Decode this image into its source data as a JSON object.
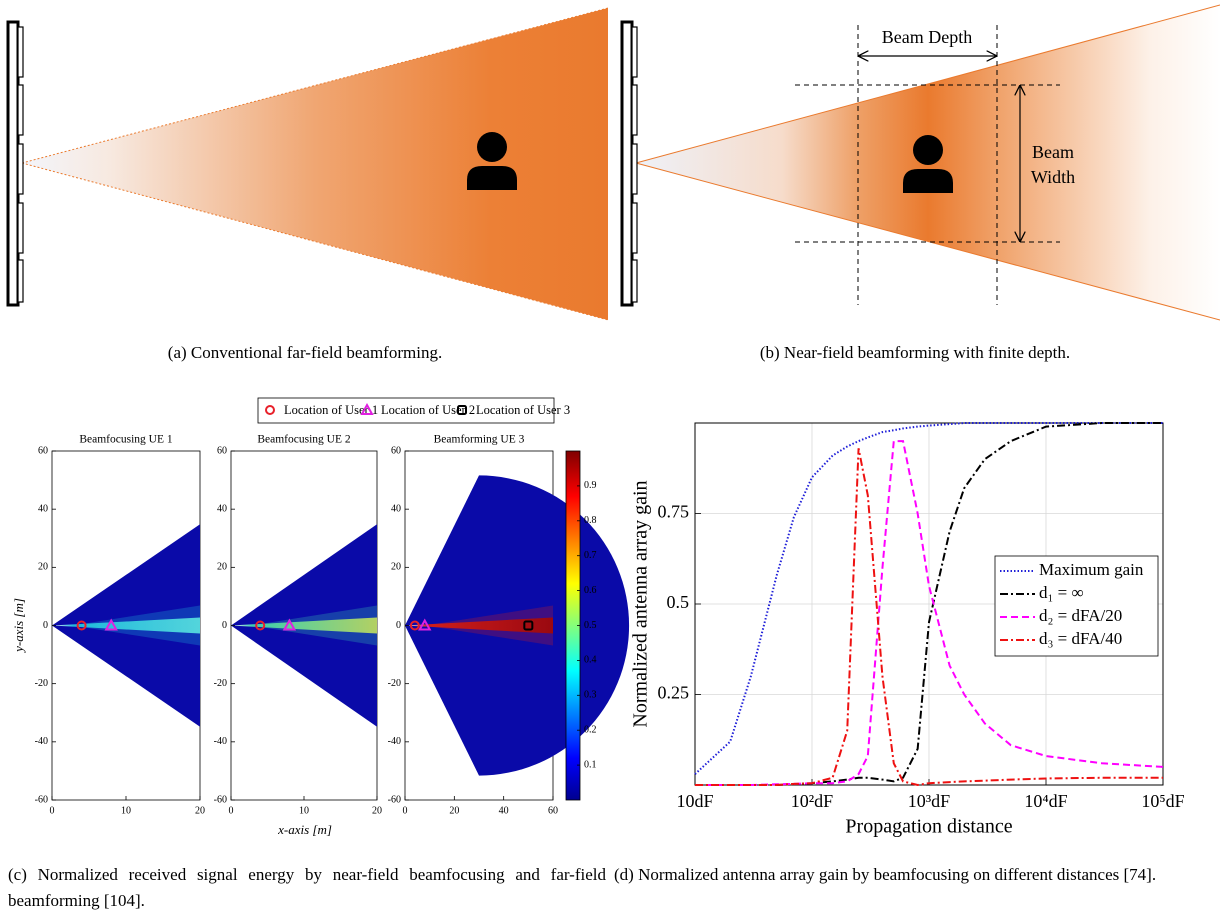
{
  "panel_a": {
    "caption": "(a) Conventional far-field beamforming."
  },
  "panel_b": {
    "depth_label": "Beam Depth",
    "width_label": [
      "Beam",
      "Width"
    ],
    "caption": "(b) Near-field beamforming with finite depth."
  },
  "chart_data": [
    {
      "type": "heatmap",
      "caption": "(c) Normalized received signal energy by near-field beamfocusing and far-field beamforming [104].",
      "xlabel": "x-axis [m]",
      "ylabel": "y-axis [m]",
      "series": [
        {
          "name": "Location of User 1",
          "color": "#e8202a",
          "marker": "circle"
        },
        {
          "name": "Location of User 2",
          "color": "#e020e0",
          "marker": "triangle"
        },
        {
          "name": "Location of User 3",
          "color": "#000000",
          "marker": "square"
        }
      ],
      "subplots": [
        {
          "title": "Beamfocusing UE 1",
          "xlim": [
            0,
            20
          ],
          "xticks": [
            0,
            10,
            20
          ],
          "ylim": [
            -60,
            60
          ],
          "yticks": [
            -60,
            -40,
            -20,
            0,
            20,
            40,
            60
          ],
          "users": {
            "x": [
              4,
              8,
              null
            ],
            "y": [
              0,
              0,
              null
            ]
          }
        },
        {
          "title": "Beamfocusing UE 2",
          "xlim": [
            0,
            20
          ],
          "xticks": [
            0,
            10,
            20
          ],
          "ylim": [
            -60,
            60
          ],
          "yticks": [
            -60,
            -40,
            -20,
            0,
            20,
            40,
            60
          ],
          "users": {
            "x": [
              4,
              8,
              null
            ],
            "y": [
              0,
              0,
              null
            ]
          }
        },
        {
          "title": "Beamforming UE 3",
          "xlim": [
            0,
            60
          ],
          "xticks": [
            0,
            20,
            40,
            60
          ],
          "ylim": [
            -60,
            60
          ],
          "yticks": [
            -60,
            -40,
            -20,
            0,
            20,
            40,
            60
          ],
          "users": {
            "x": [
              4,
              8,
              50
            ],
            "y": [
              0,
              0,
              0
            ]
          }
        }
      ],
      "colorbar": {
        "lim": [
          0,
          1
        ],
        "ticks": [
          0.1,
          0.2,
          0.3,
          0.4,
          0.5,
          0.6,
          0.7,
          0.8,
          0.9
        ]
      }
    },
    {
      "type": "line",
      "caption": "(d) Normalized antenna array gain by beamfocusing on different distances [74].",
      "xlabel": "Propagation distance",
      "ylabel": "Normalized antenna array gain",
      "log_x": true,
      "grid": true,
      "legend": "right",
      "xlim": [
        10,
        100000
      ],
      "xticks": [
        {
          "value": 10,
          "label": "10dF"
        },
        {
          "value": 100,
          "label": "10²dF"
        },
        {
          "value": 1000,
          "label": "10³dF"
        },
        {
          "value": 10000,
          "label": "10⁴dF"
        },
        {
          "value": 100000,
          "label": "10⁵dF"
        }
      ],
      "ylim": [
        0,
        1
      ],
      "yticks": [
        0.25,
        0.5,
        0.75
      ],
      "x": [
        10,
        20,
        30,
        50,
        70,
        100,
        150,
        200,
        250,
        300,
        400,
        500,
        600,
        800,
        1000,
        1500,
        2000,
        3000,
        5000,
        10000,
        30000,
        100000
      ],
      "series": [
        {
          "name": "Maximum gain",
          "color": "#1f1fd8",
          "dash": "dotted",
          "values": [
            0.03,
            0.12,
            0.3,
            0.58,
            0.74,
            0.85,
            0.91,
            0.935,
            0.95,
            0.96,
            0.975,
            0.98,
            0.985,
            0.99,
            0.993,
            0.997,
            1,
            1,
            1,
            1,
            1,
            1
          ]
        },
        {
          "name": "d₁ = ∞",
          "color": "#000000",
          "dash": "dashdot",
          "values": [
            0,
            0,
            0,
            0,
            0.002,
            0.005,
            0.01,
            0.015,
            0.02,
            0.02,
            0.015,
            0.01,
            0.02,
            0.1,
            0.45,
            0.7,
            0.82,
            0.9,
            0.95,
            0.99,
            1,
            1
          ]
        },
        {
          "name": "d₂ = dFA/20",
          "color": "#ff00ff",
          "dash": "dashed",
          "values": [
            0,
            0,
            0,
            0.002,
            0.003,
            0.005,
            0.005,
            0.01,
            0.03,
            0.08,
            0.6,
            0.95,
            0.95,
            0.75,
            0.55,
            0.33,
            0.25,
            0.17,
            0.11,
            0.08,
            0.06,
            0.05
          ]
        },
        {
          "name": "d₃ = dFA/40",
          "color": "#ee1111",
          "dash": "dashdot",
          "values": [
            0,
            0,
            0,
            0,
            0.003,
            0.005,
            0.02,
            0.15,
            0.93,
            0.8,
            0.3,
            0.06,
            0.01,
            0,
            0.005,
            0.008,
            0.01,
            0.012,
            0.015,
            0.018,
            0.02,
            0.02
          ]
        }
      ]
    }
  ]
}
